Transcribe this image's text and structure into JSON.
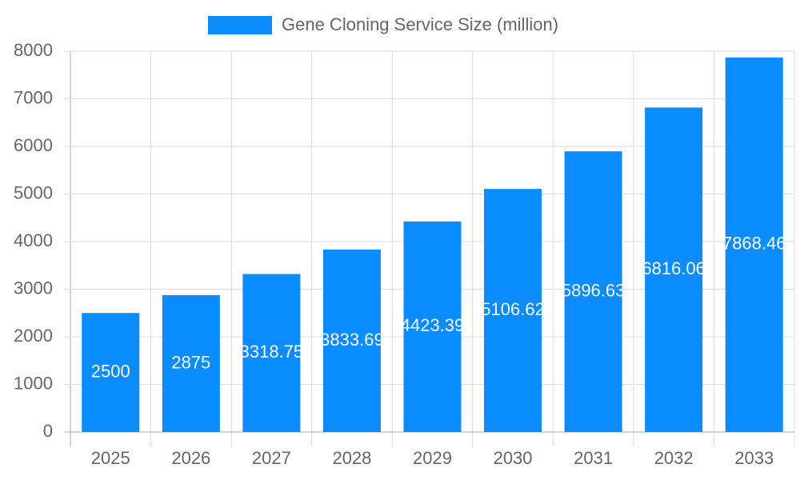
{
  "chart_data": {
    "type": "bar",
    "categories": [
      "2025",
      "2026",
      "2027",
      "2028",
      "2029",
      "2030",
      "2031",
      "2032",
      "2033"
    ],
    "series": [
      {
        "name": "Gene Cloning Service Size (million)",
        "color": "#0a8cff",
        "values": [
          2500,
          2875,
          3318.75,
          3833.69,
          4423.39,
          5106.62,
          5896.63,
          6816.06,
          7868.46
        ]
      }
    ],
    "ylim": [
      0,
      8000
    ],
    "yticks": [
      0,
      1000,
      2000,
      3000,
      4000,
      5000,
      6000,
      7000,
      8000
    ],
    "grid": true,
    "legend": "top"
  }
}
